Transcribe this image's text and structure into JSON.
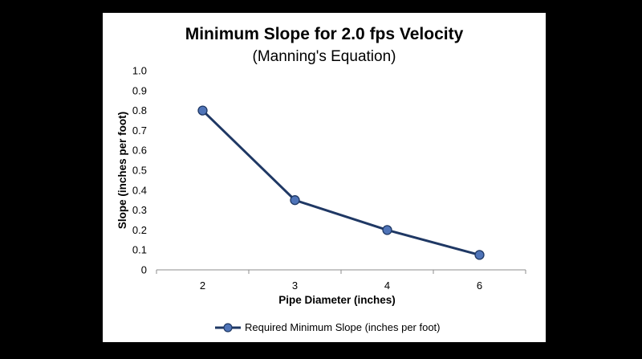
{
  "chart_data": {
    "type": "line",
    "title": "Minimum Slope for 2.0 fps Velocity",
    "subtitle": "(Manning's Equation)",
    "xlabel": "Pipe Diameter (inches)",
    "ylabel": "Slope (inches per foot)",
    "categories": [
      "2",
      "3",
      "4",
      "6"
    ],
    "ylim": [
      0,
      1.0
    ],
    "yticks": [
      "0",
      "0.1",
      "0.2",
      "0.3",
      "0.4",
      "0.5",
      "0.6",
      "0.7",
      "0.8",
      "0.9",
      "1.0"
    ],
    "series": [
      {
        "name": "Required Minimum Slope (inches per foot)",
        "values": [
          0.8,
          0.35,
          0.2,
          0.075
        ],
        "color": "#1F3864",
        "marker_fill": "#4F74B8"
      }
    ],
    "legend_position": "bottom",
    "grid": false
  }
}
